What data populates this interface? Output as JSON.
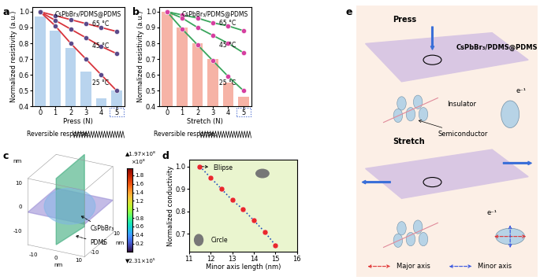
{
  "panel_labels": [
    "a",
    "b",
    "c",
    "d",
    "e"
  ],
  "chart_data": [
    {
      "type": "bar",
      "title": "CsPbBr₃/PDMS@PDMS",
      "x_label": "Press (N)",
      "y_label": "Normalized resistivity (a.u.)",
      "x": [
        0,
        1,
        2,
        3,
        4,
        5
      ],
      "values": [
        0.97,
        0.88,
        0.77,
        0.62,
        0.45,
        0.5
      ],
      "color": "#b9d4ee",
      "series": [
        {
          "name": "65 °C",
          "type": "line",
          "color": "#d8343c",
          "marker": "o",
          "values": [
            1.0,
            0.975,
            0.95,
            0.925,
            0.9,
            0.875
          ]
        },
        {
          "name": "45 °C",
          "type": "line",
          "color": "#d8343c",
          "marker": "o",
          "values": [
            1.0,
            0.945,
            0.89,
            0.835,
            0.78,
            0.735
          ]
        },
        {
          "name": "25 °C",
          "type": "line",
          "color": "#d8343c",
          "marker": "o",
          "values": [
            1.0,
            0.91,
            0.8,
            0.7,
            0.6,
            0.5
          ]
        }
      ],
      "xlim": [
        -0.5,
        5.5
      ],
      "xticks": [
        0,
        1,
        2,
        3,
        4,
        5
      ],
      "ylim": [
        0.4,
        1.03
      ],
      "yticks": [
        0.4,
        0.5,
        0.6,
        0.7,
        0.8,
        0.9,
        {
          "value": 1,
          "label": "1.0"
        }
      ],
      "annotations": [
        "Reversible response:"
      ]
    },
    {
      "type": "bar",
      "title": "CsPbBr₃/PDMS@PDMS",
      "x_label": "Stretch (N)",
      "y_label": "Normalized resistivity (a.u.)",
      "x": [
        0,
        1,
        2,
        3,
        4,
        5
      ],
      "values": [
        1.0,
        0.9,
        0.8,
        0.7,
        0.55,
        0.46
      ],
      "color": "#f6b3a6",
      "series": [
        {
          "name": "65 °C",
          "type": "line",
          "color": "#3aa55c",
          "marker": "o",
          "values": [
            1.0,
            0.98,
            0.96,
            0.93,
            0.91,
            0.88
          ]
        },
        {
          "name": "45 °C",
          "type": "line",
          "color": "#3aa55c",
          "marker": "o",
          "values": [
            1.0,
            0.96,
            0.9,
            0.85,
            0.8,
            0.74
          ]
        },
        {
          "name": "25 °C",
          "type": "line",
          "color": "#3aa55c",
          "marker": "o",
          "values": [
            1.0,
            0.89,
            0.79,
            0.69,
            0.59,
            0.5
          ]
        }
      ],
      "xlim": [
        -0.5,
        5.5
      ],
      "xticks": [
        0,
        1,
        2,
        3,
        4,
        5
      ],
      "ylim": [
        0.4,
        1.03
      ],
      "yticks": [
        0.4,
        0.5,
        0.6,
        0.7,
        0.8,
        0.9,
        {
          "value": 1,
          "label": "1.0"
        }
      ],
      "annotations": [
        "Reversible response:"
      ]
    },
    {
      "type": "scatter",
      "x_label": "Minor axis length (nm)",
      "y_label": "Normalized conductivity",
      "x": [
        11.5,
        12,
        12.5,
        13,
        13.5,
        14,
        14.5,
        15
      ],
      "values": [
        1.0,
        0.95,
        0.9,
        0.85,
        0.81,
        0.76,
        0.71,
        0.65
      ],
      "color": "#e8282b",
      "marker": "o",
      "line_style": "dotted",
      "xlim": [
        11,
        16
      ],
      "xticks": [
        11,
        12,
        13,
        14,
        15,
        16
      ],
      "ylim": [
        0.62,
        1.03
      ],
      "yticks": [
        0.7,
        0.8,
        0.9,
        {
          "value": 1,
          "label": "1.0"
        }
      ],
      "annotations": [
        "Ellipse",
        "Circle"
      ]
    }
  ],
  "diagrams": {
    "c": {
      "axis_label": "nm",
      "ticks": [
        -10,
        0,
        10
      ],
      "labels": [
        "CsPbBr₃",
        "PDMS"
      ],
      "colorbar": {
        "range": [
          0.00231,
          1.97
        ],
        "ticks": [
          0.2,
          0.4,
          0.6,
          0.8,
          1,
          1.2,
          1.4,
          1.6,
          1.8
        ],
        "multiplier": "×10⁸",
        "max_label": "▲1.97×10⁸",
        "min_label": "▼2.31×10⁵"
      }
    },
    "e": {
      "press": "Press",
      "material": "CsPbBr₃/PDMS@PDMS",
      "insulator": "Insulator",
      "semiconductor": "Semiconductor",
      "electron": "e⁻¹",
      "stretch": "Stretch",
      "major": "Major axis",
      "minor": "Minor axis"
    }
  }
}
